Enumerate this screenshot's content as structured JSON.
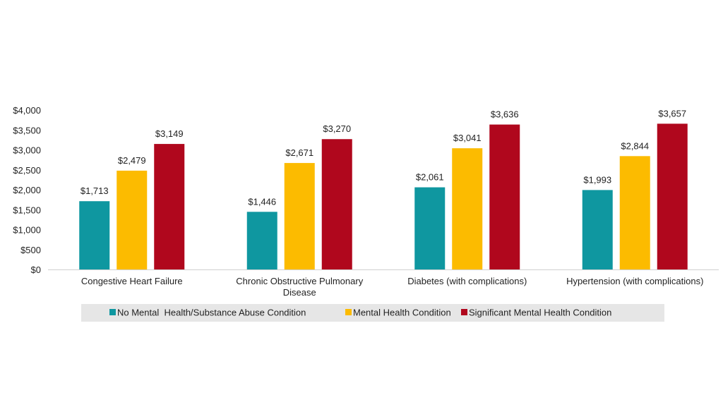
{
  "chart_data": {
    "type": "bar",
    "title": "",
    "xlabel": "",
    "ylabel": "",
    "ylim": [
      0,
      4000
    ],
    "yticks": [
      0,
      500,
      1000,
      1500,
      2000,
      2500,
      3000,
      3500,
      4000
    ],
    "ytick_labels": [
      "$0",
      "$500",
      "$1,000",
      "$1,500",
      "$2,000",
      "$2,500",
      "$3,000",
      "$3,500",
      "$4,000"
    ],
    "grid": false,
    "legend_position": "bottom",
    "categories": [
      [
        "Congestive Heart Failure"
      ],
      [
        "Chronic Obstructive Pulmonary",
        "Disease"
      ],
      [
        "Diabetes (with complications)"
      ],
      [
        "Hypertension (with complications)"
      ]
    ],
    "series": [
      {
        "name": "No Mental  Health/Substance Abuse Condition",
        "color": "#0f97a0",
        "values": [
          1713,
          1446,
          2061,
          1993
        ],
        "labels": [
          "$1,713",
          "$1,446",
          "$2,061",
          "$1,993"
        ]
      },
      {
        "name": "Mental Health Condition",
        "color": "#fcbb00",
        "values": [
          2479,
          2671,
          3041,
          2844
        ],
        "labels": [
          "$2,479",
          "$2,671",
          "$3,041",
          "$2,844"
        ]
      },
      {
        "name": "Significant Mental Health Condition",
        "color": "#b0071d",
        "values": [
          3149,
          3270,
          3636,
          3657
        ],
        "labels": [
          "$3,149",
          "$3,270",
          "$3,636",
          "$3,657"
        ]
      }
    ]
  }
}
